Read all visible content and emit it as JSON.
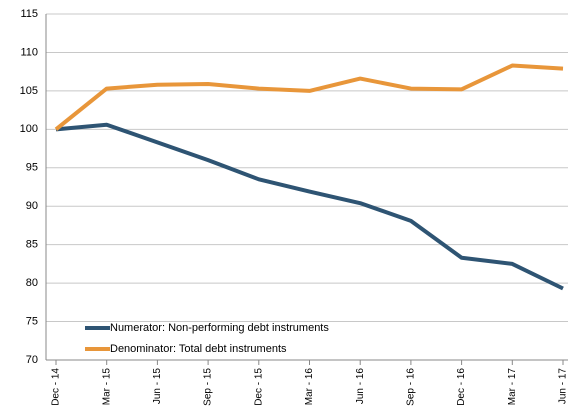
{
  "chart_data": {
    "type": "line",
    "categories": [
      "Dec - 14",
      "Mar - 15",
      "Jun - 15",
      "Sep - 15",
      "Dec - 15",
      "Mar - 16",
      "Jun - 16",
      "Sep - 16",
      "Dec - 16",
      "Mar - 17",
      "Jun - 17"
    ],
    "series": [
      {
        "name": "Numerator: Non-performing debt instruments",
        "color": "#2e5473",
        "values": [
          100,
          100.6,
          98.3,
          96,
          93.5,
          91.9,
          90.4,
          88.1,
          83.3,
          82.5,
          79.3
        ]
      },
      {
        "name": "Denominator: Total debt instruments",
        "color": "#e8963a",
        "values": [
          100,
          105.3,
          105.8,
          105.9,
          105.3,
          105,
          106.6,
          105.3,
          105.2,
          108.3,
          107.9
        ]
      }
    ],
    "ylim": [
      70,
      115
    ],
    "yticks": [
      70,
      75,
      80,
      85,
      90,
      95,
      100,
      105,
      110,
      115
    ],
    "grid": true,
    "legend": "lower left"
  }
}
